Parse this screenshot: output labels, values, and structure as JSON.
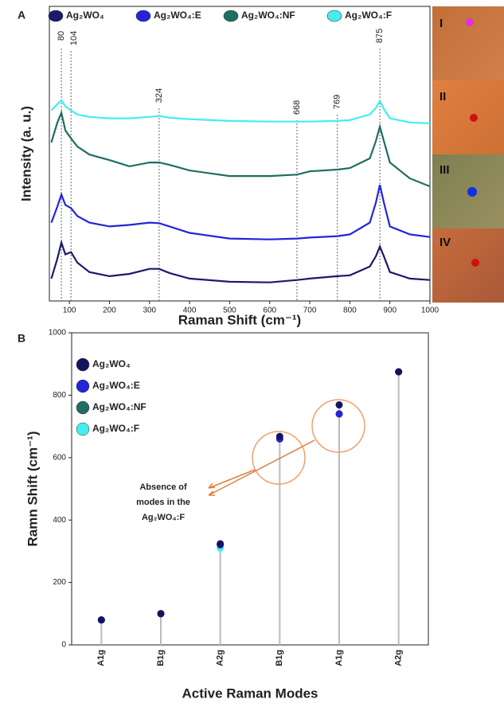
{
  "chart_data": [
    {
      "type": "line",
      "panel_label": "A",
      "x_label": "Raman Shift (cm⁻¹)",
      "y_label": "Intensity (a. u.)",
      "x": [
        55,
        70,
        80,
        90,
        104,
        120,
        150,
        200,
        250,
        300,
        324,
        350,
        400,
        500,
        600,
        668,
        700,
        769,
        800,
        850,
        865,
        875,
        885,
        900,
        950,
        1000
      ],
      "series": [
        {
          "name": "Ag₂WO₄",
          "color": "#1a1a6e",
          "values": [
            7.6,
            14.4,
            19.8,
            15.8,
            16.6,
            13.0,
            9.8,
            8.4,
            9.2,
            10.9,
            10.9,
            9.5,
            7.6,
            6.5,
            6.3,
            7.1,
            7.6,
            8.4,
            8.7,
            11.7,
            15.2,
            18.5,
            15.2,
            9.8,
            7.6,
            7.1
          ]
        },
        {
          "name": "Ag₂WO₄:E",
          "color": "#2424dc",
          "values": [
            26.6,
            32.1,
            36.1,
            32.6,
            31.5,
            28.8,
            26.6,
            25.3,
            25.8,
            26.6,
            26.4,
            25.3,
            23.1,
            21.2,
            20.9,
            21.2,
            21.5,
            22.0,
            22.6,
            26.6,
            33.4,
            39.4,
            33.4,
            25.3,
            22.6,
            21.7
          ]
        },
        {
          "name": "Ag₂WO₄:NF",
          "color": "#1f6e63",
          "values": [
            53.8,
            60.6,
            63.9,
            57.9,
            55.2,
            52.4,
            49.7,
            47.8,
            45.7,
            47.0,
            47.0,
            46.2,
            44.3,
            42.4,
            42.4,
            42.9,
            44.0,
            44.6,
            45.1,
            48.4,
            54.3,
            59.2,
            54.3,
            47.0,
            41.6,
            38.9
          ]
        },
        {
          "name": "Ag₂WO₄:F",
          "color": "#44eeee",
          "values": [
            64.7,
            66.8,
            68.2,
            66.0,
            64.7,
            63.3,
            62.5,
            62.0,
            62.0,
            62.5,
            62.8,
            62.2,
            61.7,
            61.1,
            60.9,
            60.9,
            60.9,
            61.1,
            61.4,
            63.3,
            65.5,
            67.9,
            65.2,
            62.0,
            60.6,
            60.3
          ]
        }
      ],
      "xlim": [
        50,
        1000
      ],
      "xticks": [
        100,
        200,
        300,
        400,
        500,
        600,
        700,
        800,
        900,
        1000
      ],
      "ylim": [
        0,
        100
      ],
      "peaks": [
        80,
        104,
        324,
        668,
        769,
        875
      ],
      "insets": [
        "I",
        "II",
        "III",
        "IV"
      ]
    },
    {
      "type": "scatter",
      "panel_label": "B",
      "x_label": "Active Raman Modes",
      "y_label": "Ramn Shift (cm⁻¹)",
      "categories": [
        "A1g",
        "B1g",
        "A2g",
        "B1g",
        "A1g",
        "A2g"
      ],
      "series": [
        {
          "name": "Ag₂WO₄",
          "color": "#14145e",
          "values": [
            80,
            100,
            324,
            668,
            769,
            875
          ]
        },
        {
          "name": "Ag₂WO₄:E",
          "color": "#2424dc",
          "values": [
            80,
            100,
            322,
            660,
            740,
            875
          ]
        },
        {
          "name": "Ag₂WO₄:NF",
          "color": "#1f6e63",
          "values": [
            80,
            100,
            320,
            660,
            740,
            875
          ]
        },
        {
          "name": "Ag₂WO₄:F",
          "color": "#44eeee",
          "values": [
            80,
            100,
            310,
            null,
            null,
            875
          ]
        }
      ],
      "ylim": [
        0,
        1000
      ],
      "yticks": [
        0,
        200,
        400,
        600,
        800,
        1000
      ],
      "annotation": [
        "Absence of",
        "modes in the",
        "Ag₂WO₄:F"
      ]
    }
  ]
}
